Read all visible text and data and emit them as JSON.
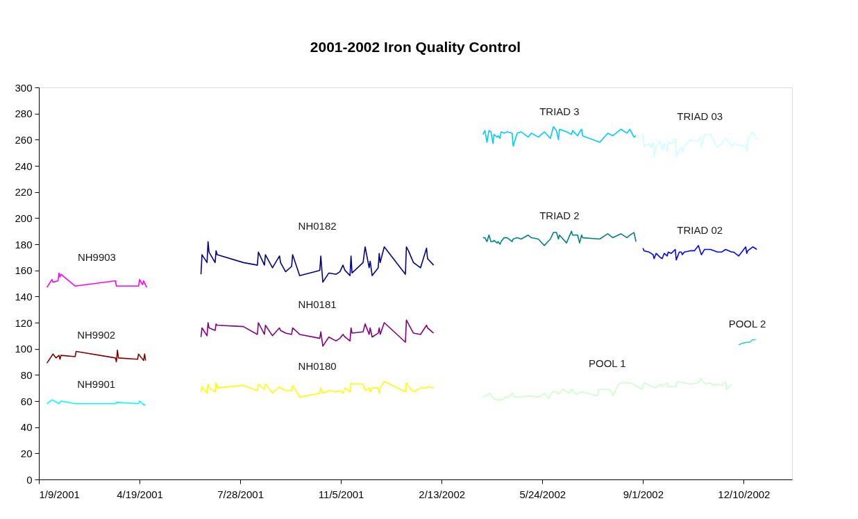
{
  "chart_data": {
    "type": "line",
    "title": "2001-2002 Iron Quality Control",
    "xlim": [
      "2001-01-09",
      "2003-01-27"
    ],
    "xticks": [
      {
        "value": "2001-01-09",
        "label": "1/9/2001"
      },
      {
        "value": "2001-04-19",
        "label": "4/19/2001"
      },
      {
        "value": "2001-07-28",
        "label": "7/28/2001"
      },
      {
        "value": "2001-11-05",
        "label": "11/5/2001"
      },
      {
        "value": "2002-02-13",
        "label": "2/13/2002"
      },
      {
        "value": "2002-05-24",
        "label": "5/24/2002"
      },
      {
        "value": "2002-09-01",
        "label": "9/1/2002"
      },
      {
        "value": "2002-12-10",
        "label": "12/10/2002"
      }
    ],
    "ylim": [
      0,
      300
    ],
    "yticks": [
      0,
      20,
      40,
      60,
      80,
      100,
      120,
      140,
      160,
      180,
      200,
      220,
      240,
      260,
      280,
      300
    ],
    "grid": false,
    "marker": "none",
    "line_style": "solid",
    "series": [
      {
        "name": "NH9903",
        "color": "#ff00ff",
        "x": [
          "2001-01-17",
          "2001-01-22",
          "2001-01-23",
          "2001-01-28",
          "2001-01-29",
          "2001-01-30",
          "2001-01-31",
          "2001-02-14",
          "2001-03-26",
          "2001-03-27",
          "2001-04-18",
          "2001-04-19",
          "2001-04-22",
          "2001-04-23",
          "2001-04-26"
        ],
        "values": [
          147,
          153,
          151,
          152,
          158,
          155,
          157,
          148,
          152,
          148,
          148,
          153,
          149,
          152,
          147
        ]
      },
      {
        "name": "NH9902",
        "color": "#800000",
        "x": [
          "2001-01-17",
          "2001-01-23",
          "2001-01-26",
          "2001-01-29",
          "2001-01-30",
          "2001-01-31",
          "2001-02-14",
          "2001-02-15",
          "2001-03-26",
          "2001-03-27",
          "2001-03-28",
          "2001-03-29",
          "2001-04-17",
          "2001-04-18",
          "2001-04-23",
          "2001-04-24",
          "2001-04-25"
        ],
        "values": [
          89,
          96,
          93,
          95,
          92,
          95,
          94,
          98,
          93,
          90,
          99,
          93,
          92,
          96,
          91,
          96,
          91
        ]
      },
      {
        "name": "NH9901",
        "color": "#00ffff",
        "x": [
          "2001-01-17",
          "2001-01-22",
          "2001-01-29",
          "2001-01-31",
          "2001-02-14",
          "2001-03-26",
          "2001-03-27",
          "2001-04-18",
          "2001-04-19",
          "2001-04-22",
          "2001-04-23",
          "2001-04-25"
        ],
        "values": [
          58,
          61,
          58,
          60,
          58,
          58,
          59,
          58,
          60,
          58,
          57,
          57
        ]
      },
      {
        "name": "NH0182",
        "color": "#000080",
        "x": [
          "2001-06-19",
          "2001-06-20",
          "2001-06-25",
          "2001-06-26",
          "2001-06-27",
          "2001-07-03",
          "2001-07-04",
          "2001-07-05",
          "2001-07-31",
          "2001-08-14",
          "2001-08-15",
          "2001-08-21",
          "2001-08-22",
          "2001-08-29",
          "2001-09-05",
          "2001-09-06",
          "2001-09-11",
          "2001-09-17",
          "2001-09-18",
          "2001-09-25",
          "2001-10-15",
          "2001-10-16",
          "2001-10-18",
          "2001-10-24",
          "2001-10-31",
          "2001-11-04",
          "2001-11-07",
          "2001-11-09",
          "2001-11-14",
          "2001-11-15",
          "2001-11-16",
          "2001-11-27",
          "2001-11-29",
          "2001-12-03",
          "2001-12-04",
          "2001-12-06",
          "2001-12-12",
          "2001-12-13",
          "2001-12-14",
          "2001-12-18",
          "2002-01-08",
          "2002-01-09",
          "2002-01-11",
          "2002-01-16",
          "2002-01-23",
          "2002-01-29",
          "2002-01-30",
          "2002-02-05"
        ],
        "values": [
          157,
          172,
          166,
          182,
          174,
          166,
          175,
          172,
          166,
          164,
          174,
          164,
          172,
          162,
          171,
          166,
          159,
          163,
          172,
          156,
          160,
          171,
          151,
          158,
          157,
          159,
          164,
          160,
          156,
          171,
          158,
          166,
          178,
          162,
          167,
          156,
          162,
          173,
          166,
          178,
          157,
          178,
          175,
          166,
          162,
          177,
          169,
          164
        ]
      },
      {
        "name": "NH0181",
        "color": "#800080",
        "x": [
          "2001-06-19",
          "2001-06-20",
          "2001-06-25",
          "2001-06-26",
          "2001-06-27",
          "2001-07-03",
          "2001-07-04",
          "2001-07-05",
          "2001-07-31",
          "2001-08-14",
          "2001-08-15",
          "2001-08-21",
          "2001-08-22",
          "2001-08-29",
          "2001-09-05",
          "2001-09-06",
          "2001-09-11",
          "2001-09-17",
          "2001-09-18",
          "2001-09-25",
          "2001-10-15",
          "2001-10-16",
          "2001-10-18",
          "2001-10-24",
          "2001-10-31",
          "2001-11-04",
          "2001-11-07",
          "2001-11-09",
          "2001-11-14",
          "2001-11-15",
          "2001-11-16",
          "2001-11-27",
          "2001-11-29",
          "2001-12-03",
          "2001-12-04",
          "2001-12-06",
          "2001-12-12",
          "2001-12-13",
          "2001-12-14",
          "2001-12-18",
          "2002-01-08",
          "2002-01-09",
          "2002-01-11",
          "2002-01-16",
          "2002-01-23",
          "2002-01-29",
          "2002-01-30",
          "2002-02-05"
        ],
        "values": [
          109,
          116,
          110,
          120,
          116,
          114,
          119,
          118,
          117,
          111,
          120,
          111,
          118,
          110,
          116,
          114,
          112,
          111,
          116,
          111,
          108,
          113,
          102,
          109,
          106,
          108,
          111,
          109,
          106,
          116,
          112,
          113,
          119,
          111,
          116,
          109,
          112,
          116,
          111,
          120,
          105,
          122,
          119,
          112,
          111,
          118,
          116,
          112
        ]
      },
      {
        "name": "NH0180",
        "color": "#ffff00",
        "x": [
          "2001-06-19",
          "2001-06-20",
          "2001-06-25",
          "2001-06-26",
          "2001-06-27",
          "2001-07-03",
          "2001-07-04",
          "2001-07-05",
          "2001-07-31",
          "2001-08-14",
          "2001-08-15",
          "2001-08-21",
          "2001-08-22",
          "2001-08-29",
          "2001-09-05",
          "2001-09-06",
          "2001-09-11",
          "2001-09-17",
          "2001-09-18",
          "2001-09-25",
          "2001-10-15",
          "2001-10-16",
          "2001-10-18",
          "2001-10-24",
          "2001-10-31",
          "2001-11-04",
          "2001-11-07",
          "2001-11-09",
          "2001-11-14",
          "2001-11-15",
          "2001-11-16",
          "2001-11-27",
          "2001-11-29",
          "2001-12-03",
          "2001-12-04",
          "2001-12-06",
          "2001-12-12",
          "2001-12-13",
          "2001-12-14",
          "2001-12-18",
          "2002-01-08",
          "2002-01-09",
          "2002-01-11",
          "2002-01-16",
          "2002-01-23",
          "2002-01-29",
          "2002-01-30",
          "2002-02-05"
        ],
        "values": [
          67,
          71,
          66,
          73,
          70,
          67,
          74,
          70,
          72,
          68,
          73,
          69,
          73,
          66,
          71,
          70,
          68,
          68,
          72,
          63,
          66,
          70,
          66,
          68,
          67,
          68,
          66,
          70,
          67,
          74,
          73,
          73,
          68,
          70,
          67,
          70,
          70,
          66,
          70,
          75,
          67,
          74,
          71,
          67,
          70,
          70,
          71,
          70
        ]
      },
      {
        "name": "TRIAD 3",
        "color": "#00ccff",
        "x": [
          "2002-03-26",
          "2002-03-28",
          "2002-03-30",
          "2002-04-01",
          "2002-04-03",
          "2002-04-05",
          "2002-04-06",
          "2002-04-09",
          "2002-04-10",
          "2002-04-12",
          "2002-04-13",
          "2002-04-16",
          "2002-04-19",
          "2002-04-24",
          "2002-04-25",
          "2002-04-29",
          "2002-05-03",
          "2002-05-10",
          "2002-05-13",
          "2002-05-20",
          "2002-05-26",
          "2002-06-01",
          "2002-06-04",
          "2002-06-07",
          "2002-06-09",
          "2002-06-10",
          "2002-06-17",
          "2002-06-22",
          "2002-06-23",
          "2002-06-28",
          "2002-06-30",
          "2002-07-02",
          "2002-07-03",
          "2002-07-20",
          "2002-07-28",
          "2002-08-02",
          "2002-08-10",
          "2002-08-16",
          "2002-08-19",
          "2002-08-23",
          "2002-08-25"
        ],
        "values": [
          264,
          267,
          258,
          267,
          266,
          257,
          264,
          262,
          263,
          261,
          266,
          265,
          266,
          265,
          255,
          265,
          266,
          262,
          265,
          262,
          266,
          261,
          270,
          267,
          260,
          268,
          266,
          264,
          267,
          263,
          266,
          268,
          263,
          258,
          265,
          263,
          268,
          265,
          268,
          262,
          263
        ]
      },
      {
        "name": "TRIAD 2",
        "color": "#008080",
        "x": [
          "2002-03-26",
          "2002-03-28",
          "2002-03-30",
          "2002-04-01",
          "2002-04-03",
          "2002-04-05",
          "2002-04-06",
          "2002-04-09",
          "2002-04-10",
          "2002-04-12",
          "2002-04-13",
          "2002-04-16",
          "2002-04-19",
          "2002-04-24",
          "2002-04-25",
          "2002-04-29",
          "2002-05-03",
          "2002-05-10",
          "2002-05-13",
          "2002-05-20",
          "2002-05-26",
          "2002-06-01",
          "2002-06-04",
          "2002-06-07",
          "2002-06-09",
          "2002-06-10",
          "2002-06-17",
          "2002-06-22",
          "2002-06-23",
          "2002-06-28",
          "2002-06-30",
          "2002-07-02",
          "2002-07-03",
          "2002-07-20",
          "2002-07-28",
          "2002-08-02",
          "2002-08-10",
          "2002-08-16",
          "2002-08-19",
          "2002-08-23",
          "2002-08-25"
        ],
        "values": [
          185,
          185,
          182,
          187,
          182,
          182,
          183,
          181,
          182,
          180,
          182,
          185,
          185,
          182,
          184,
          185,
          184,
          187,
          185,
          184,
          179,
          184,
          189,
          189,
          184,
          187,
          181,
          190,
          187,
          187,
          181,
          187,
          185,
          184,
          188,
          185,
          188,
          185,
          187,
          189,
          182
        ]
      },
      {
        "name": "TRIAD 03",
        "color": "#ccffff",
        "x": [
          "2002-09-01",
          "2002-09-02",
          "2002-09-07",
          "2002-09-09",
          "2002-09-11",
          "2002-09-12",
          "2002-09-14",
          "2002-09-18",
          "2002-09-20",
          "2002-09-22",
          "2002-09-25",
          "2002-09-26",
          "2002-09-29",
          "2002-10-03",
          "2002-10-04",
          "2002-10-07",
          "2002-10-09",
          "2002-10-10",
          "2002-10-12",
          "2002-10-18",
          "2002-10-22",
          "2002-10-26",
          "2002-10-28",
          "2002-10-29",
          "2002-11-01",
          "2002-11-07",
          "2002-11-14",
          "2002-11-18",
          "2002-11-22",
          "2002-11-28",
          "2002-11-30",
          "2002-12-05",
          "2002-12-12",
          "2002-12-13",
          "2002-12-14",
          "2002-12-19",
          "2002-12-23"
        ],
        "values": [
          264,
          255,
          257,
          254,
          258,
          247,
          255,
          259,
          252,
          257,
          251,
          258,
          257,
          261,
          247,
          252,
          254,
          251,
          255,
          260,
          259,
          259,
          262,
          254,
          264,
          264,
          254,
          257,
          261,
          255,
          257,
          256,
          255,
          251,
          260,
          266,
          260
        ]
      },
      {
        "name": "TRIAD 02",
        "color": "#0000ff",
        "x": [
          "2002-09-01",
          "2002-09-02",
          "2002-09-07",
          "2002-09-09",
          "2002-09-11",
          "2002-09-12",
          "2002-09-14",
          "2002-09-18",
          "2002-09-20",
          "2002-09-22",
          "2002-09-25",
          "2002-09-26",
          "2002-09-29",
          "2002-10-03",
          "2002-10-04",
          "2002-10-07",
          "2002-10-09",
          "2002-10-10",
          "2002-10-12",
          "2002-10-18",
          "2002-10-22",
          "2002-10-26",
          "2002-10-28",
          "2002-10-29",
          "2002-11-01",
          "2002-11-07",
          "2002-11-14",
          "2002-11-18",
          "2002-11-22",
          "2002-11-28",
          "2002-11-30",
          "2002-12-05",
          "2002-12-12",
          "2002-12-13",
          "2002-12-14",
          "2002-12-19",
          "2002-12-23"
        ],
        "values": [
          177,
          175,
          174,
          173,
          172,
          169,
          173,
          170,
          169,
          173,
          171,
          174,
          173,
          176,
          168,
          174,
          174,
          172,
          174,
          175,
          175,
          179,
          174,
          172,
          176,
          176,
          174,
          174,
          176,
          174,
          174,
          171,
          178,
          173,
          175,
          178,
          176
        ]
      },
      {
        "name": "POOL 1",
        "color": "#ccffcc",
        "x": [
          "2002-03-26",
          "2002-03-31",
          "2002-04-02",
          "2002-04-05",
          "2002-04-09",
          "2002-04-12",
          "2002-04-14",
          "2002-04-17",
          "2002-04-21",
          "2002-04-24",
          "2002-04-26",
          "2002-04-28",
          "2002-05-03",
          "2002-05-10",
          "2002-05-21",
          "2002-05-26",
          "2002-05-30",
          "2002-06-03",
          "2002-06-07",
          "2002-06-09",
          "2002-06-13",
          "2002-06-20",
          "2002-06-22",
          "2002-06-27",
          "2002-07-02",
          "2002-07-18",
          "2002-07-19",
          "2002-07-30",
          "2002-08-02",
          "2002-08-07",
          "2002-08-10",
          "2002-08-17",
          "2002-08-22",
          "2002-08-31",
          "2002-09-02",
          "2002-09-13",
          "2002-09-19",
          "2002-09-20",
          "2002-09-25",
          "2002-09-26",
          "2002-10-04",
          "2002-10-05",
          "2002-10-11",
          "2002-10-18",
          "2002-10-26",
          "2002-10-28",
          "2002-11-02",
          "2002-11-07",
          "2002-11-09",
          "2002-11-15",
          "2002-11-19",
          "2002-11-22",
          "2002-11-23",
          "2002-11-28"
        ],
        "values": [
          63,
          65,
          66,
          62,
          61,
          61,
          61,
          63,
          63,
          66,
          63,
          63,
          63,
          64,
          63,
          66,
          62,
          67,
          67,
          65,
          69,
          66,
          69,
          65,
          67,
          64,
          69,
          69,
          64,
          72,
          74,
          74,
          73,
          69,
          74,
          70,
          73,
          71,
          74,
          71,
          71,
          75,
          74,
          73,
          74,
          77,
          73,
          74,
          72,
          73,
          72,
          75,
          69,
          73
        ]
      },
      {
        "name": "POOL 2",
        "color": "#33cccc",
        "x": [
          "2002-12-05",
          "2002-12-08",
          "2002-12-13",
          "2002-12-16",
          "2002-12-19",
          "2002-12-22"
        ],
        "values": [
          103,
          104,
          105,
          105,
          107,
          107
        ]
      }
    ]
  }
}
